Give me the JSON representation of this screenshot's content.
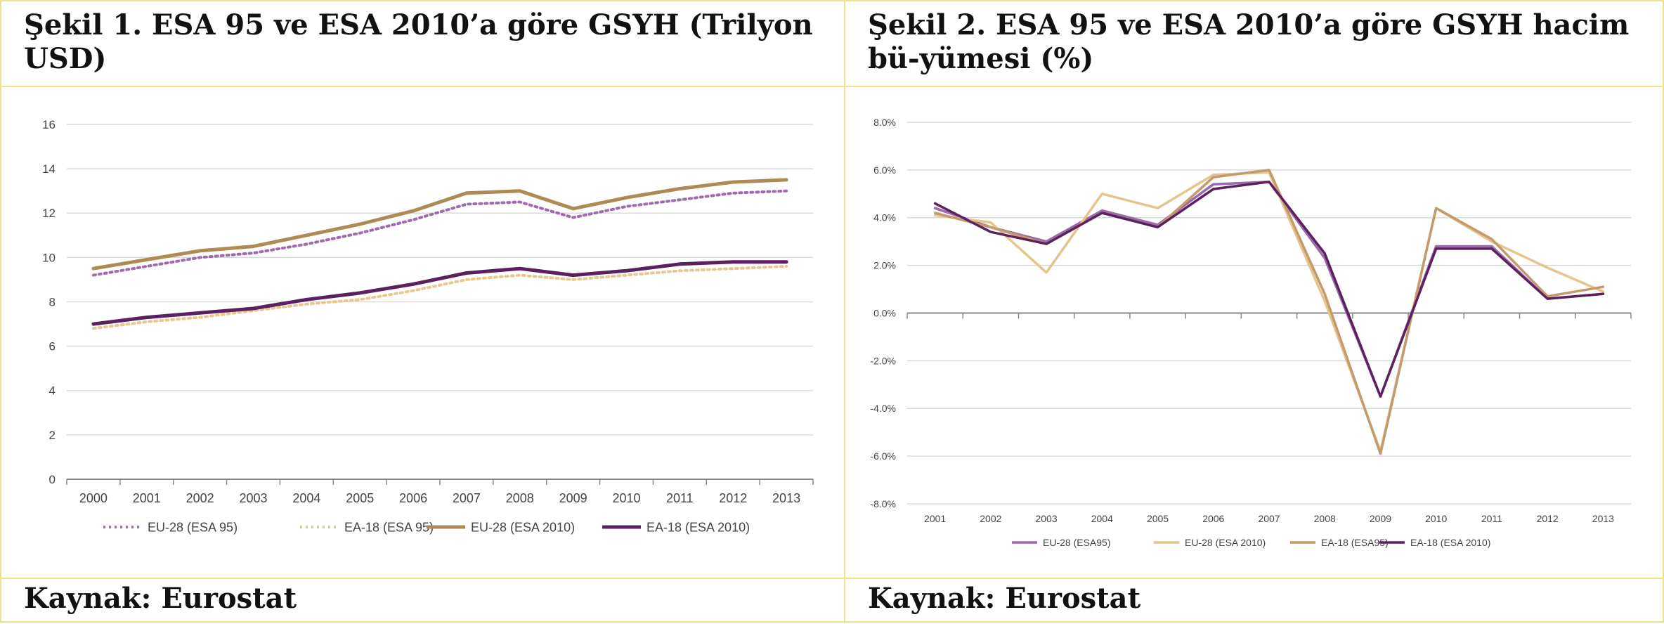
{
  "left": {
    "title": "Şekil 1. ESA 95 ve ESA 2010’a göre GSYH (Trilyon USD)",
    "source": "Kaynak: Eurostat"
  },
  "right": {
    "title": "Şekil 2. ESA 95 ve ESA 2010’a göre GSYH hacim bü-yümesi (%)",
    "source": "Kaynak: Eurostat"
  },
  "chart_data": [
    {
      "type": "line",
      "title": "Şekil 1. ESA 95 ve ESA 2010’a göre GSYH (Trilyon USD)",
      "x": [
        "2000",
        "2001",
        "2002",
        "2003",
        "2004",
        "2005",
        "2006",
        "2007",
        "2008",
        "2009",
        "2010",
        "2011",
        "2012",
        "2013"
      ],
      "ylim": [
        0,
        16
      ],
      "yticks": [
        "0",
        "2",
        "4",
        "6",
        "8",
        "10",
        "12",
        "14",
        "16"
      ],
      "grid": true,
      "legend": "bottom",
      "series": [
        {
          "name": "EU-28 (ESA 95)",
          "style": "dotted",
          "color": "#a06ab0",
          "values": [
            9.2,
            9.6,
            10.0,
            10.2,
            10.6,
            11.1,
            11.7,
            12.4,
            12.5,
            11.8,
            12.3,
            12.6,
            12.9,
            13.0
          ]
        },
        {
          "name": "EA-18 (ESA 95)",
          "style": "dotted",
          "color": "#e8c88e",
          "values": [
            6.8,
            7.1,
            7.3,
            7.6,
            7.9,
            8.1,
            8.5,
            9.0,
            9.2,
            9.0,
            9.2,
            9.4,
            9.5,
            9.6
          ]
        },
        {
          "name": "EU-28 (ESA 2010)",
          "style": "solid",
          "color": "#b08a55",
          "values": [
            9.5,
            9.9,
            10.3,
            10.5,
            11.0,
            11.5,
            12.1,
            12.9,
            13.0,
            12.2,
            12.7,
            13.1,
            13.4,
            13.5
          ]
        },
        {
          "name": "EA-18 (ESA 2010)",
          "style": "solid",
          "color": "#5c2060",
          "values": [
            7.0,
            7.3,
            7.5,
            7.7,
            8.1,
            8.4,
            8.8,
            9.3,
            9.5,
            9.2,
            9.4,
            9.7,
            9.8,
            9.8
          ]
        }
      ]
    },
    {
      "type": "line",
      "title": "Şekil 2. ESA 95 ve ESA 2010’a göre GSYH hacim bü-yümesi (%)",
      "x": [
        "2001",
        "2002",
        "2003",
        "2004",
        "2005",
        "2006",
        "2007",
        "2008",
        "2009",
        "2010",
        "2011",
        "2012",
        "2013"
      ],
      "ylim": [
        -8,
        8
      ],
      "yticks": [
        "-8.0%",
        "-6.0%",
        "-4.0%",
        "-2.0%",
        "0.0%",
        "2.0%",
        "4.0%",
        "6.0%",
        "8.0%"
      ],
      "grid": true,
      "legend": "bottom",
      "series": [
        {
          "name": "EU-28 (ESA95)",
          "style": "solid",
          "color": "#9a6aaa",
          "values": [
            4.4,
            3.6,
            3.0,
            4.3,
            3.7,
            5.4,
            5.5,
            2.3,
            -3.5,
            2.8,
            2.8,
            0.6,
            0.8
          ]
        },
        {
          "name": "EU-28 (ESA 2010)",
          "style": "solid",
          "color": "#e6c48c",
          "values": [
            4.1,
            3.8,
            1.7,
            5.0,
            4.4,
            5.8,
            5.9,
            0.5,
            -5.8,
            4.4,
            3.0,
            1.9,
            0.9
          ]
        },
        {
          "name": "EA-18 (ESA95)",
          "style": "solid",
          "color": "#c49a6c",
          "values": [
            4.2,
            3.6,
            2.9,
            4.2,
            3.6,
            5.7,
            6.0,
            0.8,
            -5.9,
            4.4,
            3.1,
            0.7,
            1.1
          ]
        },
        {
          "name": "EA-18 (ESA 2010)",
          "style": "solid",
          "color": "#5c2060",
          "values": [
            4.6,
            3.4,
            2.9,
            4.2,
            3.6,
            5.2,
            5.5,
            2.5,
            -3.5,
            2.7,
            2.7,
            0.6,
            0.8
          ]
        }
      ]
    }
  ]
}
